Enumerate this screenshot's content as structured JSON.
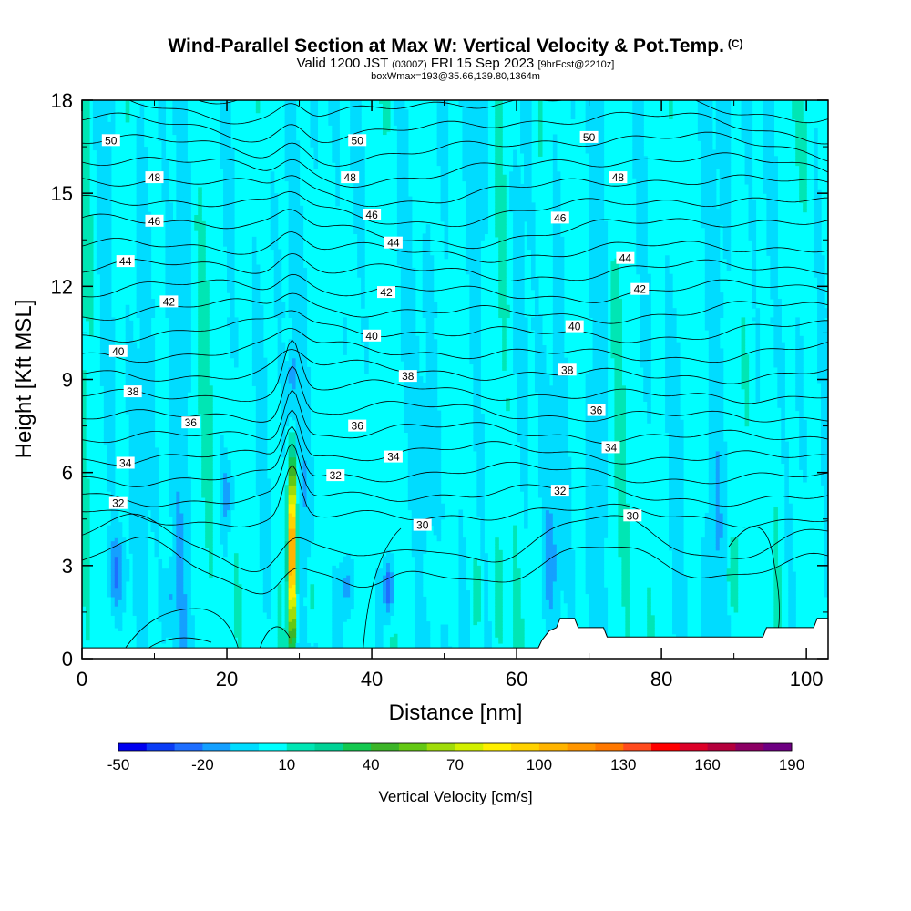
{
  "titles": {
    "main": "Wind-Parallel Section at Max W: Vertical Velocity & Pot.Temp.",
    "main_suffix": "(C)",
    "valid_a": "Valid 1200 JST",
    "valid_b": "(0300Z)",
    "valid_c": "FRI 15 Sep 2023",
    "valid_d": "[9hrFcst@2210z]",
    "box": "boxWmax=193@35.66,139.80,1364m"
  },
  "chart_data": {
    "type": "heatmap",
    "title": "Wind-Parallel Section at Max W: Vertical Velocity & Pot.Temp.",
    "xlabel": "Distance [nm]",
    "ylabel": "Height [Kft MSL]",
    "xlim": [
      0,
      103
    ],
    "ylim": [
      0,
      18
    ],
    "xticks": [
      0,
      20,
      40,
      60,
      80,
      100
    ],
    "yticks": [
      0,
      3,
      6,
      9,
      12,
      15,
      18
    ],
    "colorbar": {
      "title": "Vertical Velocity [cm/s]",
      "ticks": [
        -50,
        -20,
        10,
        40,
        70,
        100,
        130,
        160,
        190
      ],
      "min": -50,
      "max": 190,
      "step": 10,
      "colors": [
        "#0000f0",
        "#0a3cf5",
        "#1e6eff",
        "#14a0ff",
        "#00dcff",
        "#00ffff",
        "#00e6b4",
        "#00d296",
        "#14c850",
        "#3cb428",
        "#64c814",
        "#a0dc0a",
        "#d2f000",
        "#fff000",
        "#ffd200",
        "#ffb400",
        "#ff9600",
        "#ff7800",
        "#ff4b1e",
        "#ff0000",
        "#dc0028",
        "#b4003c",
        "#8c0064",
        "#6e0082"
      ]
    },
    "max_w": {
      "distance": 29,
      "height_kft": 4.5,
      "value": 193
    },
    "theta_contours": [
      {
        "level": 30,
        "x": 47,
        "y": 4.3
      },
      {
        "level": 30,
        "x": 76,
        "y": 4.6
      },
      {
        "level": 32,
        "x": 5,
        "y": 5.0
      },
      {
        "level": 32,
        "x": 35,
        "y": 5.9
      },
      {
        "level": 32,
        "x": 66,
        "y": 5.4
      },
      {
        "level": 34,
        "x": 6,
        "y": 6.3
      },
      {
        "level": 34,
        "x": 43,
        "y": 6.5
      },
      {
        "level": 34,
        "x": 73,
        "y": 6.8
      },
      {
        "level": 36,
        "x": 15,
        "y": 7.6
      },
      {
        "level": 36,
        "x": 38,
        "y": 7.5
      },
      {
        "level": 36,
        "x": 71,
        "y": 8.0
      },
      {
        "level": 38,
        "x": 7,
        "y": 8.6
      },
      {
        "level": 38,
        "x": 45,
        "y": 9.1
      },
      {
        "level": 38,
        "x": 67,
        "y": 9.3
      },
      {
        "level": 40,
        "x": 5,
        "y": 9.9
      },
      {
        "level": 40,
        "x": 40,
        "y": 10.4
      },
      {
        "level": 40,
        "x": 68,
        "y": 10.7
      },
      {
        "level": 42,
        "x": 12,
        "y": 11.5
      },
      {
        "level": 42,
        "x": 42,
        "y": 11.8
      },
      {
        "level": 42,
        "x": 77,
        "y": 11.9
      },
      {
        "level": 44,
        "x": 6,
        "y": 12.8
      },
      {
        "level": 44,
        "x": 43,
        "y": 13.4
      },
      {
        "level": 44,
        "x": 75,
        "y": 12.9
      },
      {
        "level": 46,
        "x": 10,
        "y": 14.1
      },
      {
        "level": 46,
        "x": 40,
        "y": 14.3
      },
      {
        "level": 46,
        "x": 66,
        "y": 14.2
      },
      {
        "level": 48,
        "x": 10,
        "y": 15.5
      },
      {
        "level": 48,
        "x": 37,
        "y": 15.5
      },
      {
        "level": 48,
        "x": 74,
        "y": 15.5
      },
      {
        "level": 50,
        "x": 4,
        "y": 16.7
      },
      {
        "level": 50,
        "x": 38,
        "y": 16.7
      },
      {
        "level": 50,
        "x": 70,
        "y": 16.8
      }
    ],
    "terrain": [
      [
        0,
        0.35
      ],
      [
        63,
        0.35
      ],
      [
        63.5,
        0.6
      ],
      [
        64.5,
        0.9
      ],
      [
        65.5,
        1.0
      ],
      [
        66,
        1.3
      ],
      [
        68,
        1.3
      ],
      [
        68.5,
        1.0
      ],
      [
        72,
        1.0
      ],
      [
        72.5,
        0.7
      ],
      [
        94,
        0.7
      ],
      [
        94.5,
        1.0
      ],
      [
        101,
        1.0
      ],
      [
        101.5,
        1.3
      ],
      [
        103,
        1.3
      ]
    ]
  }
}
